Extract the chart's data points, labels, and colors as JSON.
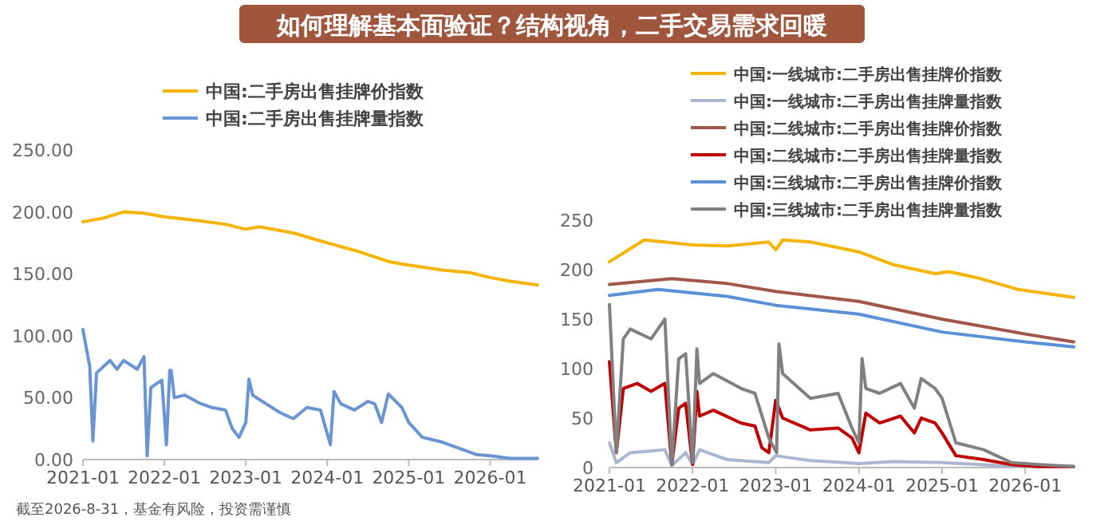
{
  "chart_data": [
    {
      "type": "line",
      "title": "如何理解基本面验证？结构视角，二手交易需求回暖",
      "annotations": [
        "截至2026-8-31，基金有风险，投资需谨慎"
      ],
      "legend": "top",
      "xlim": [
        "2021-01",
        "2026-08"
      ],
      "ylim": [
        0,
        250
      ],
      "xticks": [
        "2021-01",
        "2022-01",
        "2023-01",
        "2024-01",
        "2025-01",
        "2026-01"
      ],
      "yticks": [
        {
          "value": 0,
          "label": "0.00"
        },
        {
          "value": 50,
          "label": "50.00"
        },
        {
          "value": 100,
          "label": "100.00"
        },
        {
          "value": 150,
          "label": "150.00"
        },
        {
          "value": 200,
          "label": "200.00"
        },
        {
          "value": 250,
          "label": "250.00"
        }
      ],
      "series": [
        {
          "name": "中国:二手房出售挂牌价指数",
          "color": "#f5b400",
          "x": [
            "2021-01-01",
            "2021-04-01",
            "2021-07-01",
            "2021-10-01",
            "2022-01-01",
            "2022-06-01",
            "2022-10-01",
            "2023-01-01",
            "2023-03-01",
            "2023-08-01",
            "2024-01-01",
            "2024-05-01",
            "2024-10-01",
            "2025-01-01",
            "2025-06-01",
            "2025-10-01",
            "2026-01-01",
            "2026-04-01",
            "2026-08-01"
          ],
          "values": [
            192,
            195,
            200,
            199,
            196,
            193,
            190,
            186,
            188,
            183,
            175,
            169,
            160,
            157,
            153,
            151,
            147,
            144,
            141
          ]
        },
        {
          "name": "中国:二手房出售挂牌量指数",
          "color": "#6a95d2",
          "x": [
            "2021-01-01",
            "2021-02-01",
            "2021-02-15",
            "2021-03-01",
            "2021-05-01",
            "2021-06-01",
            "2021-07-01",
            "2021-09-01",
            "2021-10-01",
            "2021-10-15",
            "2021-11-01",
            "2021-12-01",
            "2021-12-20",
            "2022-01-10",
            "2022-01-25",
            "2022-02-01",
            "2022-02-15",
            "2022-04-01",
            "2022-06-01",
            "2022-08-01",
            "2022-10-01",
            "2022-11-01",
            "2022-12-01",
            "2023-01-01",
            "2023-01-15",
            "2023-02-01",
            "2023-04-01",
            "2023-06-01",
            "2023-08-01",
            "2023-10-01",
            "2023-12-01",
            "2024-01-15",
            "2024-02-01",
            "2024-03-01",
            "2024-05-01",
            "2024-07-01",
            "2024-08-01",
            "2024-09-01",
            "2024-10-01",
            "2024-12-01",
            "2025-01-01",
            "2025-03-01",
            "2025-06-01",
            "2025-09-01",
            "2025-11-01",
            "2026-01-01",
            "2026-04-01",
            "2026-08-01"
          ],
          "values": [
            105,
            75,
            15,
            70,
            80,
            73,
            80,
            73,
            83,
            3,
            58,
            62,
            64,
            12,
            72,
            72,
            50,
            52,
            46,
            42,
            40,
            25,
            18,
            30,
            65,
            52,
            45,
            38,
            33,
            42,
            40,
            12,
            55,
            45,
            40,
            47,
            45,
            30,
            53,
            42,
            30,
            18,
            14,
            8,
            4,
            3,
            1,
            1
          ]
        }
      ]
    },
    {
      "type": "line",
      "legend": "top",
      "xlim": [
        "2021-01",
        "2026-08"
      ],
      "ylim": [
        0,
        250
      ],
      "xticks": [
        "2021-01",
        "2022-01",
        "2023-01",
        "2024-01",
        "2025-01",
        "2026-01"
      ],
      "yticks": [
        0,
        50,
        100,
        150,
        200,
        250
      ],
      "series": [
        {
          "name": "中国:一线城市:二手房出售挂牌价指数",
          "color": "#f5b400",
          "x": [
            "2021-01-01",
            "2021-06-01",
            "2022-01-01",
            "2022-06-01",
            "2022-12-01",
            "2023-01-01",
            "2023-02-01",
            "2023-06-01",
            "2024-01-01",
            "2024-06-01",
            "2024-12-01",
            "2025-02-01",
            "2025-06-01",
            "2025-12-01",
            "2026-08-01"
          ],
          "values": [
            208,
            230,
            225,
            224,
            228,
            220,
            230,
            228,
            218,
            205,
            196,
            198,
            192,
            180,
            172
          ]
        },
        {
          "name": "中国:一线城市:二手房出售挂牌量指数",
          "color": "#a9b8d0",
          "x": [
            "2021-01-01",
            "2021-02-01",
            "2021-04-01",
            "2021-09-01",
            "2021-10-01",
            "2021-12-01",
            "2022-01-01",
            "2022-02-01",
            "2022-06-01",
            "2022-12-01",
            "2023-01-01",
            "2023-06-01",
            "2024-01-01",
            "2024-06-01",
            "2025-01-01",
            "2025-09-01",
            "2026-08-01"
          ],
          "values": [
            25,
            5,
            15,
            18,
            2,
            15,
            3,
            18,
            8,
            5,
            12,
            7,
            4,
            6,
            5,
            2,
            1
          ]
        },
        {
          "name": "中国:二线城市:二手房出售挂牌价指数",
          "color": "#a0574a",
          "x": [
            "2021-01-01",
            "2021-10-01",
            "2022-06-01",
            "2023-01-01",
            "2024-01-01",
            "2025-01-01",
            "2026-01-01",
            "2026-08-01"
          ],
          "values": [
            185,
            191,
            186,
            178,
            168,
            150,
            135,
            127
          ]
        },
        {
          "name": "中国:二线城市:二手房出售挂牌量指数",
          "color": "#c00000",
          "x": [
            "2021-01-01",
            "2021-02-01",
            "2021-03-01",
            "2021-05-01",
            "2021-07-01",
            "2021-09-01",
            "2021-10-01",
            "2021-11-01",
            "2021-12-01",
            "2022-01-01",
            "2022-01-20",
            "2022-02-01",
            "2022-04-01",
            "2022-08-01",
            "2022-10-01",
            "2022-11-01",
            "2022-12-01",
            "2023-01-01",
            "2023-02-01",
            "2023-06-01",
            "2023-10-01",
            "2023-12-01",
            "2024-01-01",
            "2024-02-01",
            "2024-04-01",
            "2024-07-01",
            "2024-09-01",
            "2024-10-01",
            "2024-12-01",
            "2025-01-01",
            "2025-03-01",
            "2025-07-01",
            "2025-11-01",
            "2026-03-01",
            "2026-08-01"
          ],
          "values": [
            107,
            15,
            80,
            85,
            77,
            85,
            3,
            60,
            65,
            3,
            77,
            52,
            58,
            45,
            42,
            20,
            15,
            68,
            50,
            38,
            40,
            30,
            15,
            55,
            45,
            52,
            35,
            50,
            45,
            35,
            12,
            8,
            3,
            1,
            1
          ]
        },
        {
          "name": "中国:三线城市:二手房出售挂牌价指数",
          "color": "#5b8fd6",
          "x": [
            "2021-01-01",
            "2021-08-01",
            "2022-06-01",
            "2023-01-01",
            "2024-01-01",
            "2025-01-01",
            "2026-01-01",
            "2026-08-01"
          ],
          "values": [
            174,
            180,
            173,
            164,
            155,
            137,
            127,
            122
          ]
        },
        {
          "name": "中国:三线城市:二手房出售挂牌量指数",
          "color": "#808080",
          "x": [
            "2021-01-01",
            "2021-02-01",
            "2021-03-01",
            "2021-04-01",
            "2021-07-01",
            "2021-09-01",
            "2021-10-01",
            "2021-11-01",
            "2021-12-01",
            "2022-01-01",
            "2022-01-20",
            "2022-02-01",
            "2022-04-01",
            "2022-08-01",
            "2022-10-01",
            "2022-12-01",
            "2023-01-05",
            "2023-01-15",
            "2023-02-01",
            "2023-06-01",
            "2023-10-01",
            "2023-12-01",
            "2024-01-01",
            "2024-01-15",
            "2024-02-01",
            "2024-04-01",
            "2024-07-01",
            "2024-09-01",
            "2024-10-01",
            "2024-12-01",
            "2025-01-01",
            "2025-03-01",
            "2025-07-01",
            "2025-11-01",
            "2026-03-01",
            "2026-08-01"
          ],
          "values": [
            165,
            15,
            130,
            140,
            130,
            150,
            3,
            110,
            115,
            5,
            120,
            85,
            95,
            80,
            75,
            30,
            15,
            125,
            95,
            70,
            75,
            40,
            25,
            110,
            80,
            75,
            85,
            60,
            90,
            80,
            70,
            25,
            18,
            5,
            3,
            1
          ]
        }
      ]
    }
  ]
}
